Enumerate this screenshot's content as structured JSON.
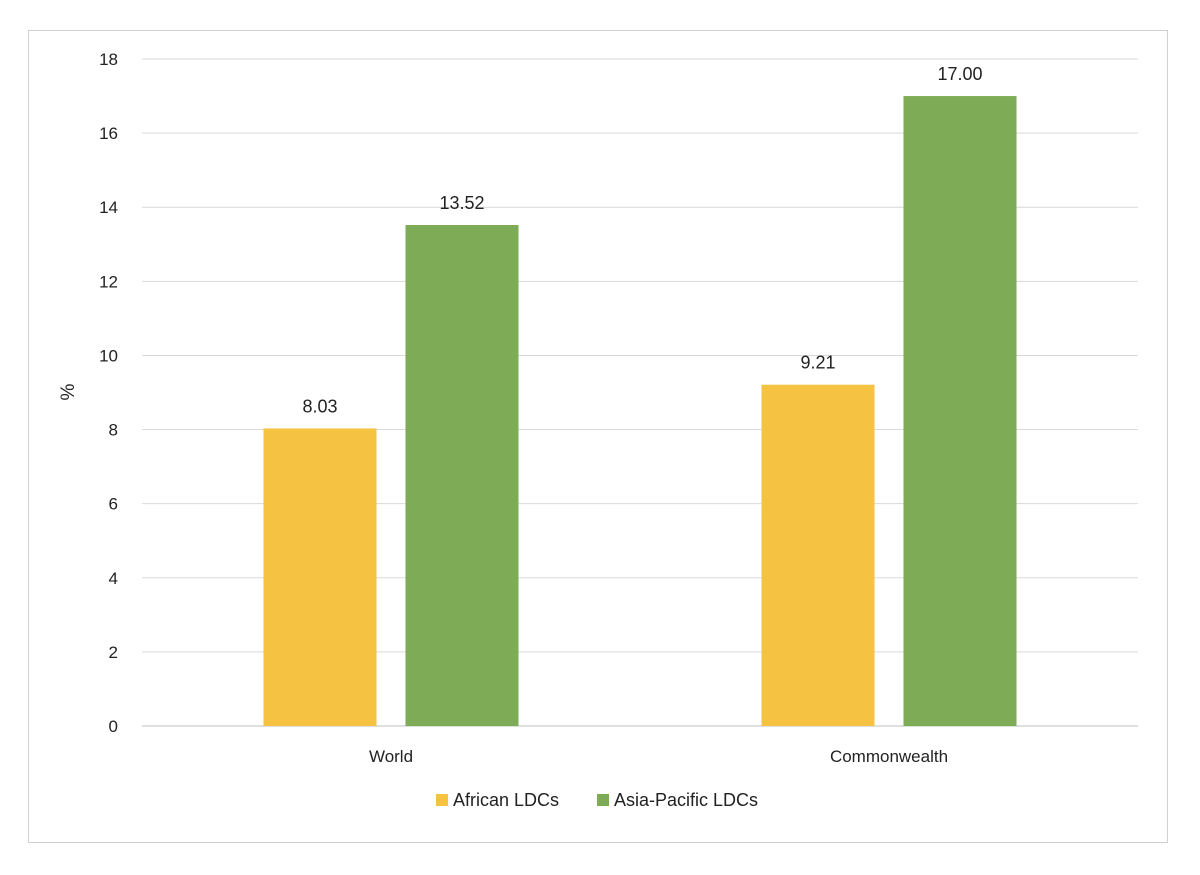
{
  "chart_data": {
    "type": "bar",
    "title": "",
    "xlabel": "",
    "ylabel": "%",
    "ylim": [
      0,
      18
    ],
    "yticks": [
      0,
      2,
      4,
      6,
      8,
      10,
      12,
      14,
      16,
      18
    ],
    "categories": [
      "World",
      "Commonwealth"
    ],
    "series": [
      {
        "name": "African LDCs",
        "values": [
          8.03,
          9.21
        ],
        "labels": [
          "8.03",
          "9.21"
        ],
        "color": "#F5C242"
      },
      {
        "name": "Asia-Pacific LDCs",
        "values": [
          13.52,
          17.0
        ],
        "labels": [
          "13.52",
          "17.00"
        ],
        "color": "#7EAB55"
      }
    ],
    "grid": true,
    "legend_position": "bottom"
  }
}
